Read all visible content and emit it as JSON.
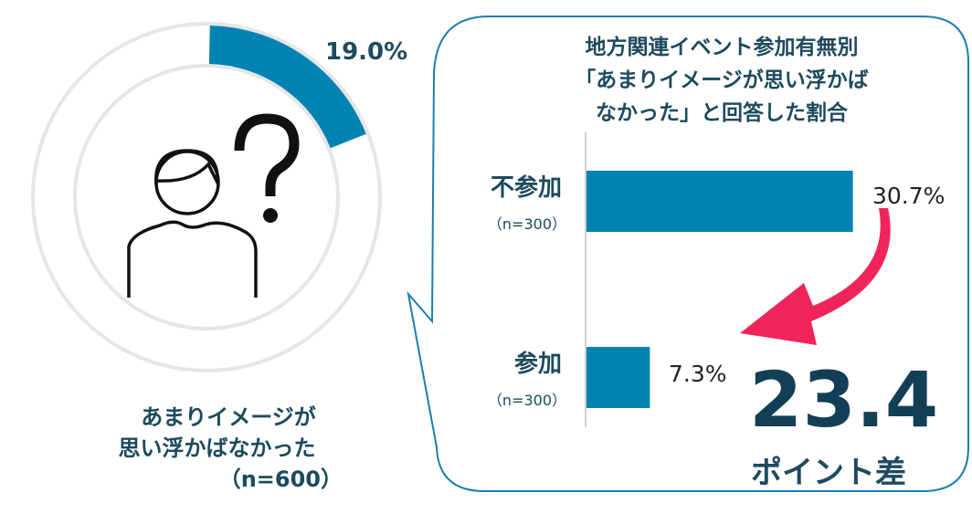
{
  "chart_data": [
    {
      "type": "pie",
      "variant": "donut",
      "values": [
        19.0
      ],
      "value_label": "19.0%",
      "caption_lines": [
        "あまりイメージが",
        "思い浮かばなかった",
        "（n=600）"
      ],
      "ylim": [
        0,
        100
      ]
    },
    {
      "type": "bar",
      "orientation": "horizontal",
      "title_lines": [
        "地方関連イベント参加有無別",
        "「あまりイメージが思い浮かば",
        "なかった」と回答した割合"
      ],
      "categories": [
        "不参加",
        "参加"
      ],
      "category_notes": [
        "（n=300）",
        "（n=300）"
      ],
      "values": [
        30.7,
        7.3
      ],
      "data_labels": [
        "30.7%",
        "7.3%"
      ],
      "difference": {
        "value": "23.4",
        "unit": "ポイント差"
      }
    }
  ],
  "colors": {
    "bar": "#0083b3",
    "ring": "#e6e6e6",
    "text": "#1d4a5e",
    "arrow": "#f0245a",
    "bubble": "#1a7fb0"
  },
  "icons": [
    "person-icon",
    "question-mark-icon",
    "curved-arrow-icon"
  ]
}
